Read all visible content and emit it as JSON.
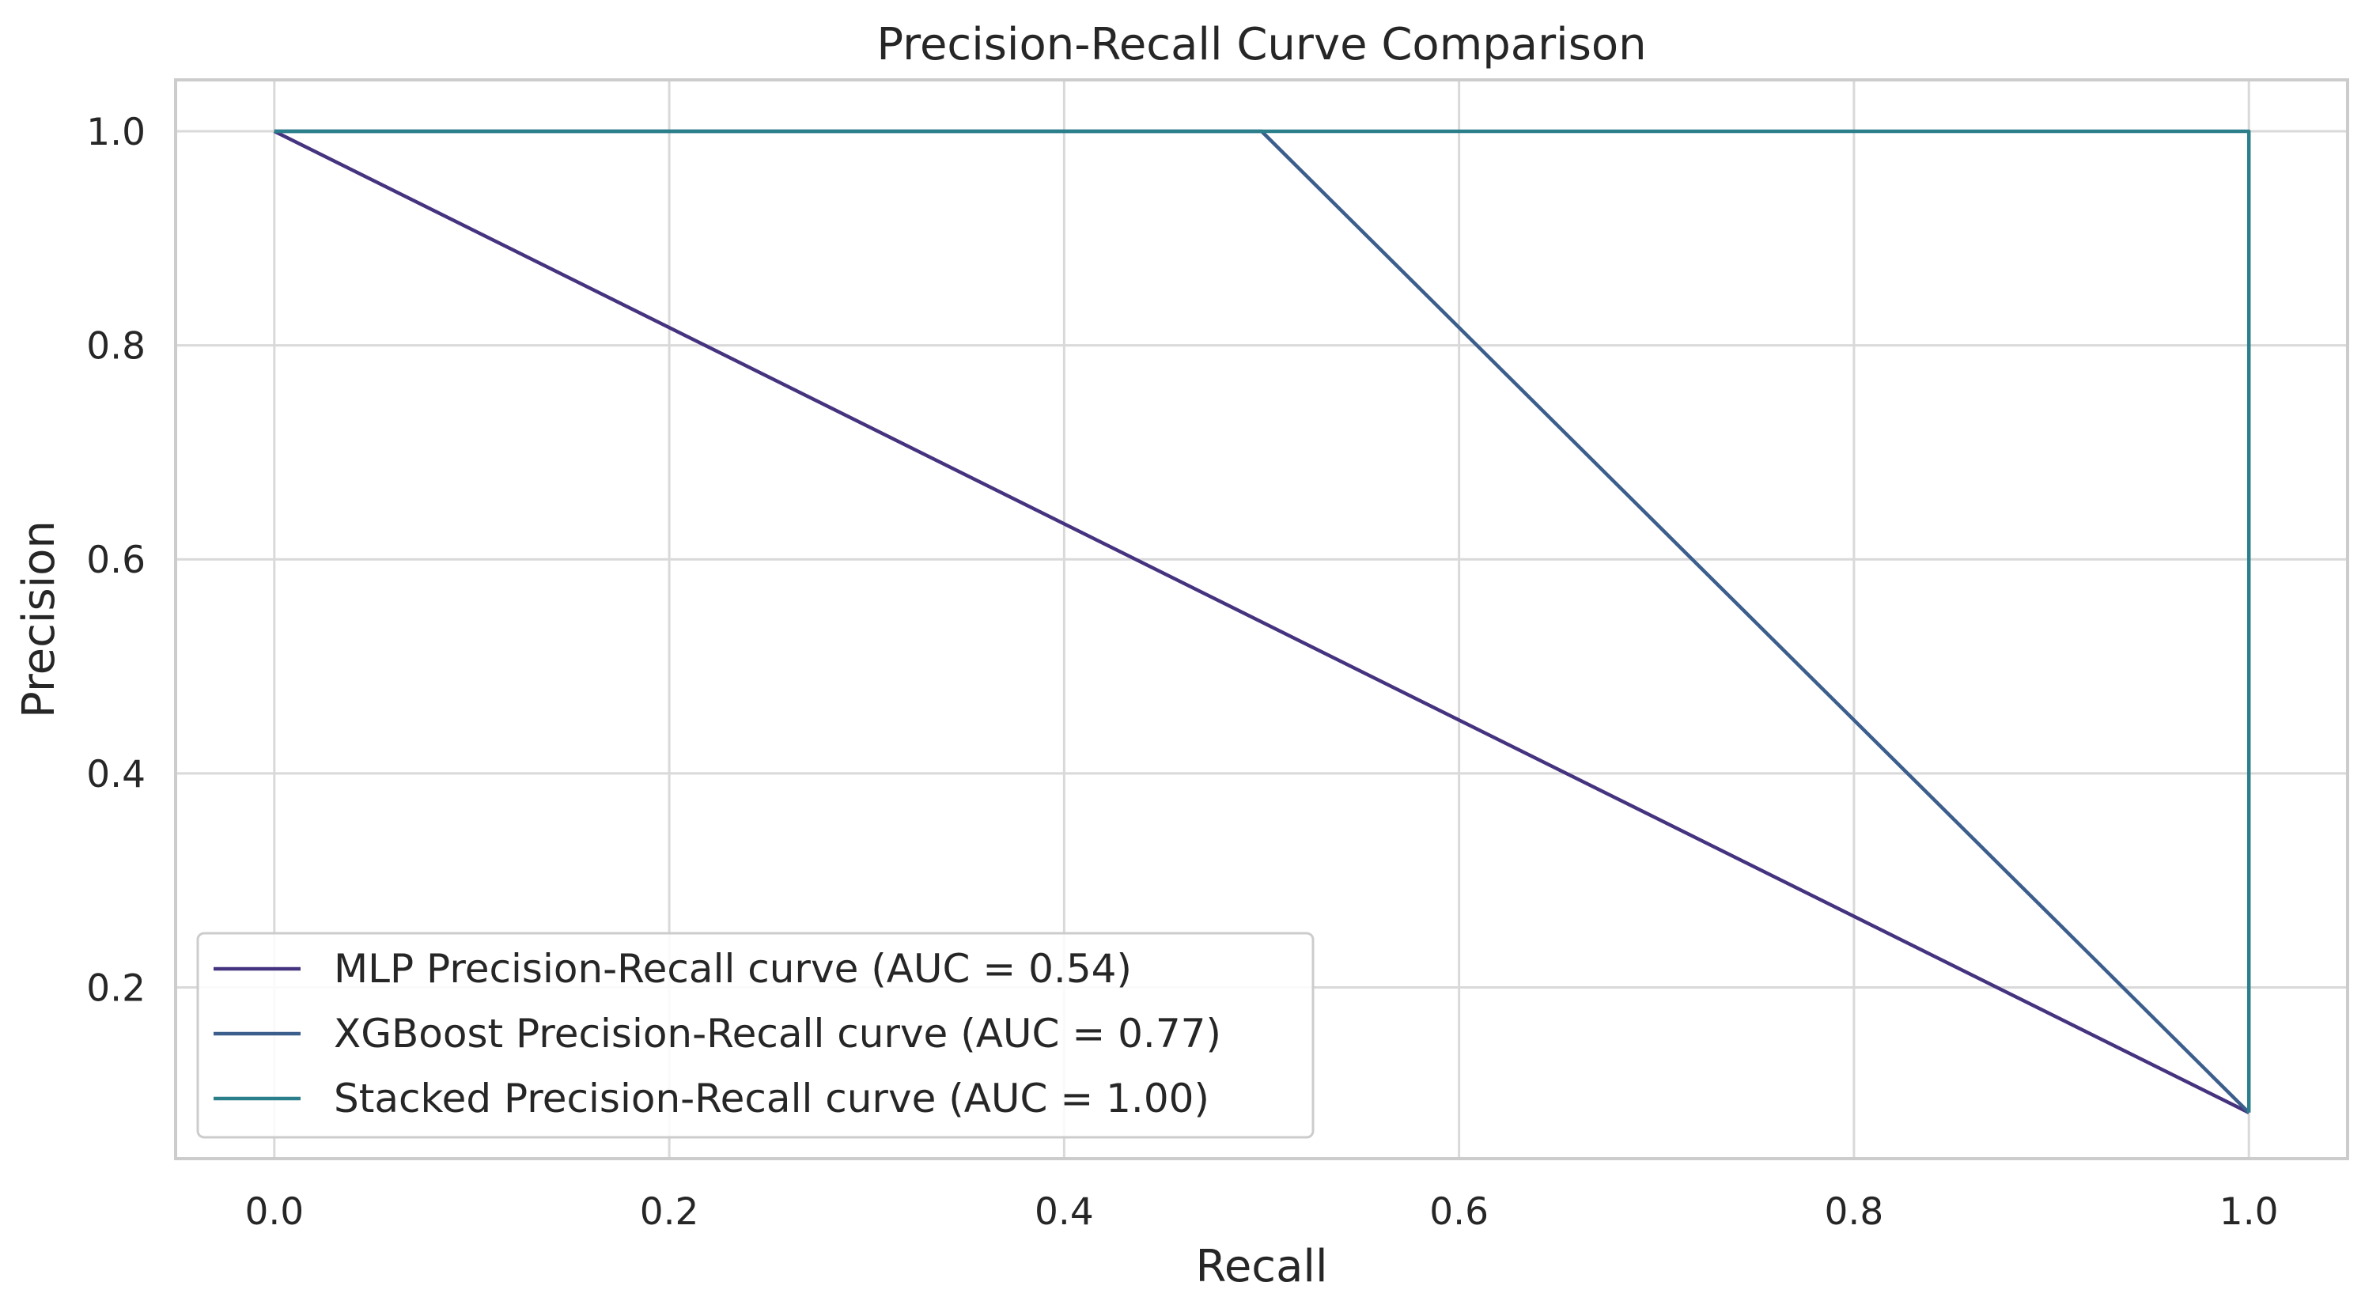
{
  "chart_data": {
    "type": "line",
    "title": "Precision-Recall Curve Comparison",
    "xlabel": "Recall",
    "ylabel": "Precision",
    "xlim": [
      -0.05,
      1.05
    ],
    "ylim": [
      0.04,
      1.048
    ],
    "xticks": [
      0.0,
      0.2,
      0.4,
      0.6,
      0.8,
      1.0
    ],
    "xtick_labels": [
      "0.0",
      "0.2",
      "0.4",
      "0.6",
      "0.8",
      "1.0"
    ],
    "yticks": [
      0.2,
      0.4,
      0.6,
      0.8,
      1.0
    ],
    "ytick_labels": [
      "0.2",
      "0.4",
      "0.6",
      "0.8",
      "1.0"
    ],
    "grid": true,
    "legend_location": "lower-left",
    "series": [
      {
        "name": "MLP Precision-Recall curve (AUC = 0.54)",
        "color": "#45337f",
        "x": [
          0.0,
          1.0
        ],
        "y": [
          1.0,
          0.083
        ]
      },
      {
        "name": "XGBoost Precision-Recall curve (AUC = 0.77)",
        "color": "#3b5e8c",
        "x": [
          0.0,
          0.5,
          1.0
        ],
        "y": [
          1.0,
          1.0,
          0.083
        ]
      },
      {
        "name": "Stacked Precision-Recall curve (AUC = 1.00)",
        "color": "#2a7f8b",
        "x": [
          0.0,
          1.0,
          1.0
        ],
        "y": [
          1.0,
          1.0,
          0.083
        ]
      }
    ]
  }
}
